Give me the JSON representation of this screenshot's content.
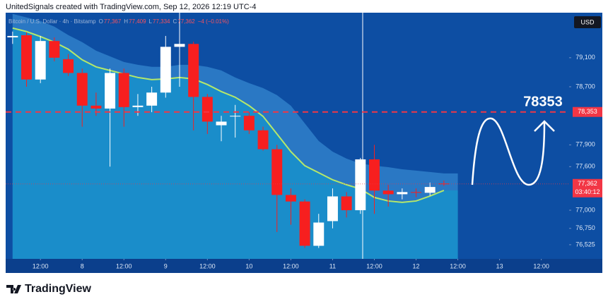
{
  "header": "UnitedSignals created with TradingView.com, Sep 12, 2026 12:19 UTC-4",
  "brand": "TradingView",
  "chart_data": {
    "type": "candlestick",
    "symbol": "Bitcoin / U.S. Dollar · 4h · Bitstamp",
    "ohlc_legend": [
      {
        "label": "O",
        "value": "77,367"
      },
      {
        "label": "H",
        "value": "77,409"
      },
      {
        "label": "L",
        "value": "77,334"
      },
      {
        "label": "C",
        "value": "77,362"
      }
    ],
    "change": "−4 (−0.01%)",
    "currency": "USD",
    "up_color": "#ffffff",
    "down_color": "#f71f1f",
    "open": [
      79380,
      79410,
      78800,
      79330,
      79080,
      78890,
      78440,
      78400,
      78890,
      78420,
      78440,
      78620,
      79250,
      79290,
      78560,
      78170,
      78290,
      78300,
      78100,
      77840,
      77210,
      77120,
      76510,
      76850,
      77190,
      77000,
      77700,
      77270,
      77220,
      77250,
      77240,
      77367
    ],
    "high": [
      79460,
      79450,
      79400,
      79380,
      79150,
      78950,
      78620,
      78950,
      78950,
      78600,
      78700,
      79400,
      79720,
      79320,
      78600,
      78300,
      78450,
      78350,
      78150,
      77900,
      77300,
      77150,
      76950,
      77300,
      77250,
      77720,
      77900,
      77350,
      77300,
      77300,
      77380,
      77409
    ],
    "low": [
      79290,
      78700,
      78750,
      79050,
      78850,
      78150,
      78300,
      77600,
      78150,
      78300,
      78350,
      78550,
      78700,
      78100,
      78050,
      77950,
      78000,
      78050,
      77820,
      76700,
      76800,
      76480,
      76480,
      76750,
      76900,
      76950,
      76950,
      77050,
      77150,
      77180,
      77200,
      77334
    ],
    "close": [
      79400,
      78800,
      79330,
      79100,
      78890,
      78440,
      78400,
      78890,
      78420,
      78440,
      78620,
      79250,
      79290,
      78560,
      78220,
      78220,
      78300,
      78100,
      77840,
      77210,
      77120,
      76510,
      76830,
      77190,
      77000,
      77700,
      77270,
      77220,
      77250,
      77240,
      77320,
      77362
    ],
    "ma": {
      "color": "#b5e86a",
      "values": [
        79508,
        79460,
        79392,
        79314,
        79217,
        79071,
        78974,
        78925,
        78877,
        78828,
        78799,
        78808,
        78828,
        78808,
        78731,
        78634,
        78556,
        78439,
        78293,
        78050,
        77807,
        77613,
        77516,
        77419,
        77351,
        77293,
        77176,
        77127,
        77108,
        77127,
        77195,
        77273
      ]
    },
    "band_upper": {
      "color": "#2a78c4",
      "values": [
        79703,
        79654,
        79606,
        79528,
        79411,
        79314,
        79197,
        79119,
        79041,
        79003,
        78974,
        78974,
        79003,
        79003,
        78974,
        78925,
        78828,
        78750,
        78682,
        78585,
        78439,
        78196,
        77953,
        77807,
        77710,
        77642,
        77613,
        77593,
        77564,
        77545,
        77526,
        77506
      ]
    },
    "xlim": [
      -0.5,
      40
    ],
    "xticks": [
      {
        "value": 2,
        "label": "12:00"
      },
      {
        "value": 5,
        "label": "8"
      },
      {
        "value": 8,
        "label": "12:00"
      },
      {
        "value": 11,
        "label": "9"
      },
      {
        "value": 14,
        "label": "12:00"
      },
      {
        "value": 17,
        "label": "10"
      },
      {
        "value": 20,
        "label": "12:00"
      },
      {
        "value": 23,
        "label": "11"
      },
      {
        "value": 26,
        "label": "12:00"
      },
      {
        "value": 29,
        "label": "12"
      },
      {
        "value": 32,
        "label": "12:00"
      },
      {
        "value": 35,
        "label": "13"
      },
      {
        "value": 38,
        "label": "12:00"
      }
    ],
    "ylim": [
      76330,
      79720
    ],
    "yticks": [
      {
        "value": 79100,
        "label": "79,100"
      },
      {
        "value": 78700,
        "label": "78,700"
      },
      {
        "value": 77900,
        "label": "77,900"
      },
      {
        "value": 77600,
        "label": "77,600"
      },
      {
        "value": 77000,
        "label": "77,000"
      },
      {
        "value": 76750,
        "label": "76,750"
      },
      {
        "value": 76525,
        "label": "76,525"
      }
    ],
    "level": {
      "value": 78353,
      "label": "78,353",
      "color": "#f23645"
    },
    "annotation": "78353",
    "last_price_label": "77,362",
    "countdown": "03:40:12"
  }
}
